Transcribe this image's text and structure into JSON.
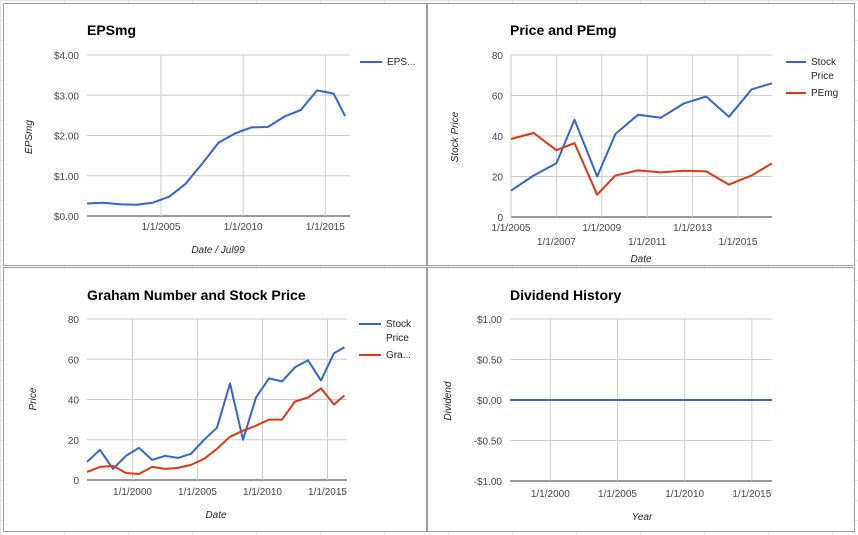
{
  "chart_data": [
    {
      "id": "eps",
      "type": "line",
      "title": "EPSmg",
      "xlabel": "Date / Jul99",
      "ylabel": "EPSmg",
      "xlim": [
        2000.5,
        2016.5
      ],
      "ylim": [
        0,
        4
      ],
      "y_ticks": [
        0,
        1,
        2,
        3,
        4
      ],
      "y_tick_labels": [
        "$0.00",
        "$1.00",
        "$2.00",
        "$3.00",
        "$4.00"
      ],
      "x_ticks": [
        2005,
        2010,
        2015
      ],
      "x_tick_labels": [
        "1/1/2005",
        "1/1/2010",
        "1/1/2015"
      ],
      "legend_position": "right",
      "grid": true,
      "series": [
        {
          "name": "EPS...",
          "color": "#3366cc",
          "x": [
            2000.5,
            2001.5,
            2002.5,
            2003.5,
            2004.5,
            2005.5,
            2006.5,
            2007.5,
            2008.5,
            2009.5,
            2010.5,
            2011.5,
            2012.5,
            2013.5,
            2014.5,
            2015.5,
            2016.2
          ],
          "y": [
            0.31,
            0.33,
            0.29,
            0.28,
            0.33,
            0.48,
            0.8,
            1.3,
            1.82,
            2.05,
            2.2,
            2.21,
            2.47,
            2.63,
            3.12,
            3.04,
            2.48
          ]
        }
      ]
    },
    {
      "id": "pepe",
      "type": "line",
      "title": "Price and PEmg",
      "xlabel": "Date",
      "ylabel": "Stock Price",
      "xlim": [
        2005,
        2016.5
      ],
      "ylim": [
        0,
        80
      ],
      "y_ticks": [
        0,
        20,
        40,
        60,
        80
      ],
      "y_tick_labels": [
        "0",
        "20",
        "40",
        "60",
        "80"
      ],
      "x_ticks": [
        2005,
        2007,
        2009,
        2011,
        2013,
        2015
      ],
      "x_tick_labels": [
        "1/1/2005",
        "1/1/2007",
        "1/1/2009",
        "1/1/2011",
        "1/1/2013",
        "1/1/2015"
      ],
      "legend_position": "right",
      "grid": true,
      "series": [
        {
          "name": "Stock Price",
          "color": "#3366cc",
          "x": [
            2005.0,
            2006.0,
            2007.0,
            2007.8,
            2008.8,
            2009.6,
            2010.6,
            2011.6,
            2012.6,
            2013.6,
            2014.6,
            2015.6,
            2016.5
          ],
          "y": [
            13,
            20.5,
            26.5,
            48,
            20,
            41,
            50.5,
            49,
            56,
            59.5,
            49.5,
            63,
            66
          ]
        },
        {
          "name": "PEmg",
          "color": "#dc3912",
          "x": [
            2005.0,
            2006.0,
            2007.0,
            2007.8,
            2008.8,
            2009.6,
            2010.6,
            2011.6,
            2012.6,
            2013.6,
            2014.6,
            2015.6,
            2016.5
          ],
          "y": [
            38.5,
            41.5,
            33,
            36.5,
            11,
            20.5,
            23,
            22,
            22.8,
            22.5,
            16,
            20.5,
            26.5
          ]
        }
      ]
    },
    {
      "id": "graham",
      "type": "line",
      "title": "Graham Number and Stock Price",
      "xlabel": "Date",
      "ylabel": "Price",
      "xlim": [
        1996.5,
        2016.5
      ],
      "ylim": [
        0,
        80
      ],
      "y_ticks": [
        0,
        20,
        40,
        60,
        80
      ],
      "y_tick_labels": [
        "0",
        "20",
        "40",
        "60",
        "80"
      ],
      "x_ticks": [
        2000,
        2005,
        2010,
        2015
      ],
      "x_tick_labels": [
        "1/1/2000",
        "1/1/2005",
        "1/1/2010",
        "1/1/2015"
      ],
      "legend_position": "right",
      "grid": true,
      "series": [
        {
          "name": "Stock Price",
          "color": "#3366cc",
          "x": [
            1996.5,
            1997.5,
            1998.5,
            1999.5,
            2000.5,
            2001.5,
            2002.5,
            2003.5,
            2004.5,
            2005.5,
            2006.5,
            2007.5,
            2008.5,
            2009.5,
            2010.5,
            2011.5,
            2012.5,
            2013.5,
            2014.5,
            2015.5,
            2016.3
          ],
          "y": [
            9,
            15,
            5.5,
            12,
            16,
            10,
            12,
            11,
            13,
            20,
            26,
            48,
            20,
            41,
            50.5,
            49,
            56,
            59.5,
            49.5,
            63,
            66
          ]
        },
        {
          "name": "Gra...",
          "color": "#dc3912",
          "x": [
            1996.5,
            1997.5,
            1998.5,
            1999.5,
            2000.5,
            2001.5,
            2002.5,
            2003.5,
            2004.5,
            2005.5,
            2006.5,
            2007.5,
            2008.5,
            2009.5,
            2010.5,
            2011.5,
            2012.5,
            2013.5,
            2014.5,
            2015.5,
            2016.3
          ],
          "y": [
            4,
            6.5,
            7,
            3.5,
            3,
            6.5,
            5.5,
            6,
            7.5,
            10.5,
            15.5,
            21.5,
            24.5,
            27,
            30,
            30,
            39,
            41,
            45.5,
            37.5,
            42
          ]
        }
      ]
    },
    {
      "id": "dividend",
      "type": "line",
      "title": "Dividend History",
      "xlabel": "Year",
      "ylabel": "Dividend",
      "xlim": [
        1997,
        2016.5
      ],
      "ylim": [
        -1,
        1
      ],
      "y_ticks": [
        -1,
        -0.5,
        0,
        0.5,
        1
      ],
      "y_tick_labels": [
        "-$1.00",
        "-$0.50",
        "$0.00",
        "$0.50",
        "$1.00"
      ],
      "x_ticks": [
        2000,
        2005,
        2010,
        2015
      ],
      "x_tick_labels": [
        "1/1/2000",
        "1/1/2005",
        "1/1/2010",
        "1/1/2015"
      ],
      "grid": true,
      "series": [
        {
          "name": "",
          "color": "#3366cc",
          "x": [
            1997,
            2016.5
          ],
          "y": [
            0,
            0
          ]
        }
      ]
    }
  ]
}
